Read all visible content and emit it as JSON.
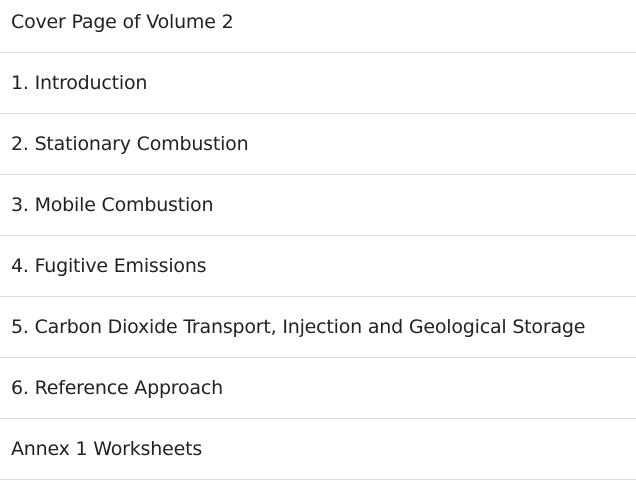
{
  "items": [
    {
      "label": "Cover Page of Volume 2"
    },
    {
      "label": "1. Introduction"
    },
    {
      "label": "2. Stationary Combustion"
    },
    {
      "label": "3. Mobile Combustion"
    },
    {
      "label": "4. Fugitive Emissions"
    },
    {
      "label": "5. Carbon Dioxide Transport, Injection and Geological Storage"
    },
    {
      "label": "6. Reference Approach"
    },
    {
      "label": "Annex 1 Worksheets"
    }
  ]
}
